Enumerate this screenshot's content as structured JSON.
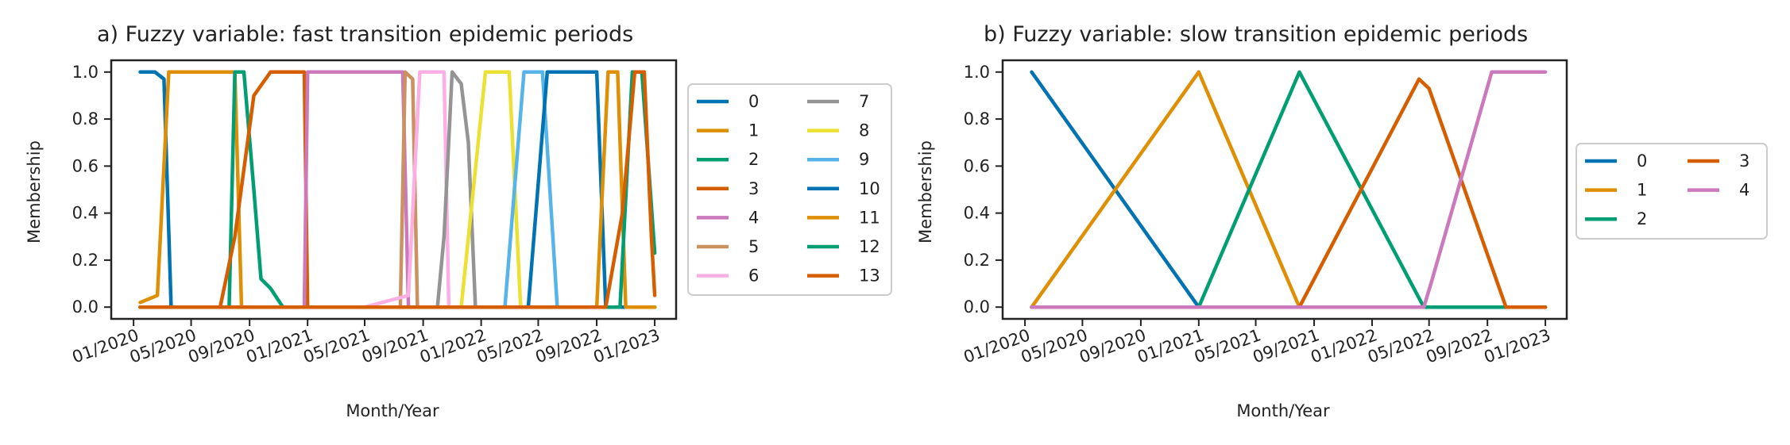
{
  "chart_data": [
    {
      "type": "line",
      "title": "a) Fuzzy variable: fast transition epidemic periods",
      "xlabel": "Month/Year",
      "ylabel": "Membership",
      "xlim": [
        "2019-11-15",
        "2023-02-15"
      ],
      "ylim": [
        -0.05,
        1.05
      ],
      "xticks": [
        "2020-01-01",
        "2020-05-01",
        "2020-09-01",
        "2021-01-01",
        "2021-05-01",
        "2021-09-01",
        "2022-01-01",
        "2022-05-01",
        "2022-09-01",
        "2023-01-01"
      ],
      "xticklabels": [
        "01/2020",
        "05/2020",
        "09/2020",
        "01/2021",
        "05/2021",
        "09/2021",
        "01/2022",
        "05/2022",
        "09/2022",
        "01/2023"
      ],
      "yticks": [
        0.0,
        0.2,
        0.4,
        0.6,
        0.8,
        1.0
      ],
      "yticklabels": [
        "0.0",
        "0.2",
        "0.4",
        "0.6",
        "0.8",
        "1.0"
      ],
      "grid": false,
      "legend": {
        "placement": "outside right",
        "columns": 2
      },
      "series": [
        {
          "name": "0",
          "color": "#0173b2",
          "points": [
            [
              "2020-01-15",
              1.0
            ],
            [
              "2020-02-15",
              1.0
            ],
            [
              "2020-03-05",
              0.97
            ],
            [
              "2020-03-20",
              0.0
            ],
            [
              "2023-01-01",
              0.0
            ]
          ]
        },
        {
          "name": "1",
          "color": "#de8f05",
          "points": [
            [
              "2020-01-15",
              0.02
            ],
            [
              "2020-02-20",
              0.05
            ],
            [
              "2020-03-15",
              1.0
            ],
            [
              "2020-08-01",
              1.0
            ],
            [
              "2020-08-15",
              0.0
            ],
            [
              "2023-01-01",
              0.0
            ]
          ]
        },
        {
          "name": "2",
          "color": "#029e73",
          "points": [
            [
              "2020-01-15",
              0.0
            ],
            [
              "2020-07-20",
              0.0
            ],
            [
              "2020-08-01",
              1.0
            ],
            [
              "2020-08-20",
              1.0
            ],
            [
              "2020-09-10",
              0.5
            ],
            [
              "2020-09-25",
              0.12
            ],
            [
              "2020-10-15",
              0.08
            ],
            [
              "2020-11-10",
              0.0
            ],
            [
              "2023-01-01",
              0.0
            ]
          ]
        },
        {
          "name": "3",
          "color": "#d55e00",
          "points": [
            [
              "2020-01-15",
              0.0
            ],
            [
              "2020-07-01",
              0.0
            ],
            [
              "2020-08-01",
              0.3
            ],
            [
              "2020-09-10",
              0.9
            ],
            [
              "2020-10-15",
              1.0
            ],
            [
              "2020-12-25",
              1.0
            ],
            [
              "2021-01-01",
              0.0
            ],
            [
              "2023-01-01",
              0.0
            ]
          ]
        },
        {
          "name": "4",
          "color": "#cc78bc",
          "points": [
            [
              "2020-01-15",
              0.0
            ],
            [
              "2020-12-25",
              0.0
            ],
            [
              "2021-01-01",
              1.0
            ],
            [
              "2021-07-20",
              1.0
            ],
            [
              "2021-08-01",
              0.0
            ],
            [
              "2023-01-01",
              0.0
            ]
          ]
        },
        {
          "name": "5",
          "color": "#ca9161",
          "points": [
            [
              "2020-01-15",
              0.0
            ],
            [
              "2021-07-15",
              0.0
            ],
            [
              "2021-07-25",
              1.0
            ],
            [
              "2021-08-10",
              0.97
            ],
            [
              "2021-08-20",
              0.0
            ],
            [
              "2023-01-01",
              0.0
            ]
          ]
        },
        {
          "name": "6",
          "color": "#fbafe4",
          "points": [
            [
              "2020-01-15",
              0.0
            ],
            [
              "2021-05-01",
              0.0
            ],
            [
              "2021-08-01",
              0.05
            ],
            [
              "2021-08-25",
              1.0
            ],
            [
              "2021-10-15",
              1.0
            ],
            [
              "2021-10-25",
              0.0
            ],
            [
              "2023-01-01",
              0.0
            ]
          ]
        },
        {
          "name": "7",
          "color": "#949494",
          "points": [
            [
              "2020-01-15",
              0.0
            ],
            [
              "2021-10-01",
              0.0
            ],
            [
              "2021-10-15",
              0.3
            ],
            [
              "2021-11-01",
              1.0
            ],
            [
              "2021-11-20",
              0.95
            ],
            [
              "2021-12-05",
              0.7
            ],
            [
              "2021-12-20",
              0.0
            ],
            [
              "2023-01-01",
              0.0
            ]
          ]
        },
        {
          "name": "8",
          "color": "#ece133",
          "points": [
            [
              "2020-01-15",
              0.0
            ],
            [
              "2021-11-20",
              0.0
            ],
            [
              "2022-01-10",
              1.0
            ],
            [
              "2022-03-01",
              1.0
            ],
            [
              "2022-03-25",
              0.0
            ],
            [
              "2023-01-01",
              0.0
            ]
          ]
        },
        {
          "name": "9",
          "color": "#56b4e9",
          "points": [
            [
              "2020-01-15",
              0.0
            ],
            [
              "2022-02-20",
              0.0
            ],
            [
              "2022-04-01",
              1.0
            ],
            [
              "2022-05-10",
              1.0
            ],
            [
              "2022-06-10",
              0.0
            ],
            [
              "2023-01-01",
              0.0
            ]
          ]
        },
        {
          "name": "10",
          "color": "#0173b2",
          "points": [
            [
              "2020-01-15",
              0.0
            ],
            [
              "2022-04-10",
              0.0
            ],
            [
              "2022-05-20",
              1.0
            ],
            [
              "2022-09-01",
              1.0
            ],
            [
              "2022-09-20",
              0.0
            ],
            [
              "2023-01-01",
              0.0
            ]
          ]
        },
        {
          "name": "11",
          "color": "#de8f05",
          "points": [
            [
              "2020-01-15",
              0.0
            ],
            [
              "2022-09-01",
              0.0
            ],
            [
              "2022-09-25",
              1.0
            ],
            [
              "2022-10-15",
              1.0
            ],
            [
              "2022-11-01",
              0.0
            ],
            [
              "2023-01-01",
              0.0
            ]
          ]
        },
        {
          "name": "12",
          "color": "#029e73",
          "points": [
            [
              "2020-01-15",
              0.0
            ],
            [
              "2022-10-20",
              0.0
            ],
            [
              "2022-11-15",
              1.0
            ],
            [
              "2022-12-05",
              1.0
            ],
            [
              "2023-01-01",
              0.23
            ]
          ]
        },
        {
          "name": "13",
          "color": "#d55e00",
          "points": [
            [
              "2020-01-15",
              0.0
            ],
            [
              "2022-09-20",
              0.0
            ],
            [
              "2022-10-25",
              0.4
            ],
            [
              "2022-11-20",
              1.0
            ],
            [
              "2022-12-10",
              1.0
            ],
            [
              "2022-12-25",
              0.3
            ],
            [
              "2023-01-01",
              0.05
            ]
          ]
        }
      ]
    },
    {
      "type": "line",
      "title": "b) Fuzzy variable: slow transition epidemic periods",
      "xlabel": "Month/Year",
      "ylabel": "Membership",
      "xlim": [
        "2019-11-15",
        "2023-02-15"
      ],
      "ylim": [
        -0.05,
        1.05
      ],
      "xticks": [
        "2020-01-01",
        "2020-05-01",
        "2020-09-01",
        "2021-01-01",
        "2021-05-01",
        "2021-09-01",
        "2022-01-01",
        "2022-05-01",
        "2022-09-01",
        "2023-01-01"
      ],
      "xticklabels": [
        "01/2020",
        "05/2020",
        "09/2020",
        "01/2021",
        "05/2021",
        "09/2021",
        "01/2022",
        "05/2022",
        "09/2022",
        "01/2023"
      ],
      "yticks": [
        0.0,
        0.2,
        0.4,
        0.6,
        0.8,
        1.0
      ],
      "yticklabels": [
        "0.0",
        "0.2",
        "0.4",
        "0.6",
        "0.8",
        "1.0"
      ],
      "grid": false,
      "legend": {
        "placement": "outside right",
        "columns": 2
      },
      "series": [
        {
          "name": "0",
          "color": "#0173b2",
          "points": [
            [
              "2020-01-15",
              1.0
            ],
            [
              "2021-01-01",
              0.0
            ],
            [
              "2023-01-01",
              0.0
            ]
          ]
        },
        {
          "name": "1",
          "color": "#de8f05",
          "points": [
            [
              "2020-01-15",
              0.0
            ],
            [
              "2021-01-01",
              1.0
            ],
            [
              "2021-08-01",
              0.0
            ],
            [
              "2023-01-01",
              0.0
            ]
          ]
        },
        {
          "name": "2",
          "color": "#029e73",
          "points": [
            [
              "2020-01-15",
              0.0
            ],
            [
              "2021-01-01",
              0.0
            ],
            [
              "2021-08-01",
              1.0
            ],
            [
              "2022-04-20",
              0.0
            ],
            [
              "2023-01-01",
              0.0
            ]
          ]
        },
        {
          "name": "3",
          "color": "#d55e00",
          "points": [
            [
              "2020-01-15",
              0.0
            ],
            [
              "2021-08-01",
              0.0
            ],
            [
              "2022-04-10",
              0.97
            ],
            [
              "2022-05-01",
              0.93
            ],
            [
              "2022-10-10",
              0.0
            ],
            [
              "2023-01-01",
              0.0
            ]
          ]
        },
        {
          "name": "4",
          "color": "#cc78bc",
          "points": [
            [
              "2020-01-15",
              0.0
            ],
            [
              "2022-04-20",
              0.0
            ],
            [
              "2022-05-05",
              0.1
            ],
            [
              "2022-09-10",
              1.0
            ],
            [
              "2023-01-01",
              1.0
            ]
          ]
        }
      ]
    }
  ]
}
